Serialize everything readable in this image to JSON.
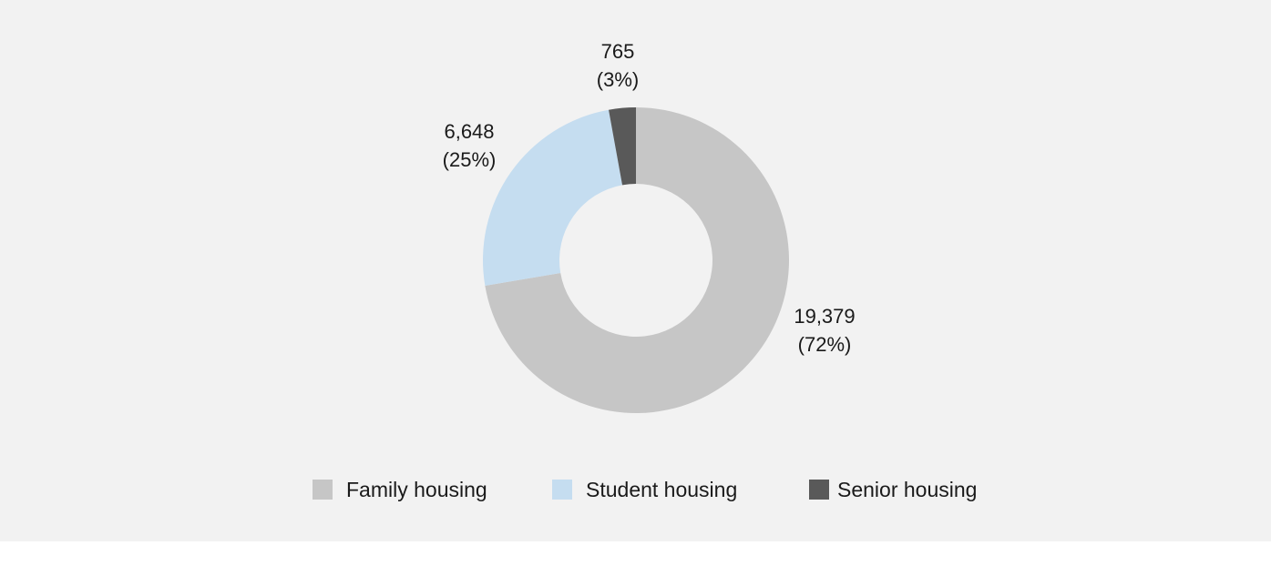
{
  "chart_data": {
    "type": "pie",
    "variant": "donut",
    "categories": [
      "Family housing",
      "Student housing",
      "Senior housing"
    ],
    "values": [
      19379,
      6648,
      765
    ],
    "percentages": [
      72,
      25,
      3
    ],
    "value_labels": [
      "19,379",
      "6,648",
      "765"
    ],
    "percent_labels": [
      "(72%)",
      "(25%)",
      "(3%)"
    ],
    "colors": [
      "#c6c6c6",
      "#c5ddf0",
      "#595959"
    ],
    "legend_position": "bottom",
    "start_angle_deg": 0,
    "direction": "clockwise"
  },
  "legend": {
    "items": [
      {
        "label": "Family housing",
        "color": "#c6c6c6"
      },
      {
        "label": "Student housing",
        "color": "#c5ddf0"
      },
      {
        "label": "Senior housing",
        "color": "#595959"
      }
    ]
  },
  "colors": {
    "background": "#f2f2f2",
    "text": "#1a1a1a"
  }
}
